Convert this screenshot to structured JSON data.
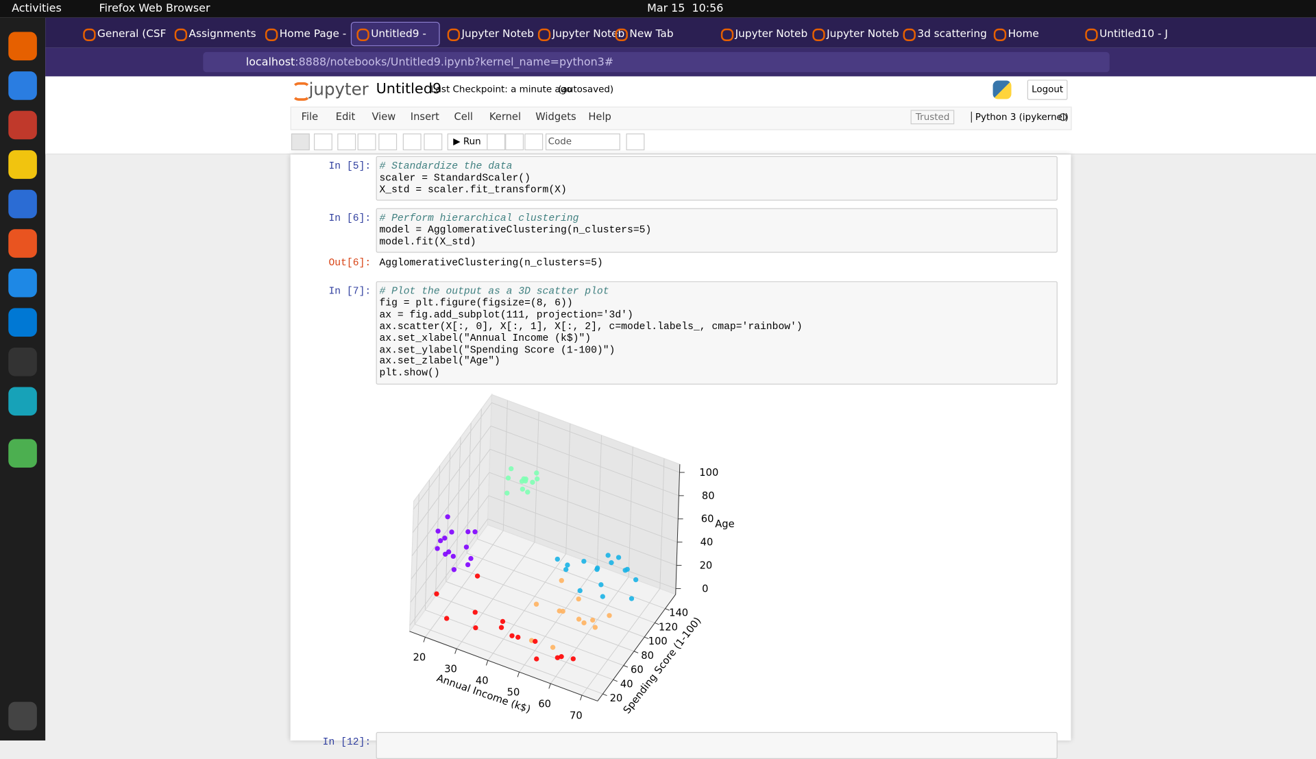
{
  "topbar": {
    "activities": "Activities",
    "app": "Firefox Web Browser",
    "clock": "Mar 15  10:56"
  },
  "tabs": [
    "General (CSF",
    "Assignments",
    "Home Page -",
    "Untitled9 -",
    "Jupyter Noteb",
    "Jupyter Noteb",
    "New Tab",
    "Jupyter Noteb",
    "Jupyter Noteb",
    "3d scattering",
    "Home",
    "Untitled10 - J"
  ],
  "url": {
    "host": "localhost",
    "path": ":8888/notebooks/Untitled9.ipynb?kernel_name=python3#"
  },
  "notebook": {
    "logo": "jupyter",
    "name": "Untitled9",
    "checkpoint": "Last Checkpoint: a minute ago",
    "autosaved": "(autosaved)",
    "logout": "Logout",
    "menu": [
      "File",
      "Edit",
      "View",
      "Insert",
      "Cell",
      "Kernel",
      "Widgets",
      "Help"
    ],
    "trusted": "Trusted",
    "kernel": "Python 3 (ipykernel)",
    "run": "Run",
    "cell_type": "Code"
  },
  "cells": [
    {
      "prompt": "In [5]:",
      "code": [
        "# Standardize the data",
        "scaler = StandardScaler()",
        "X_std = scaler.fit_transform(X)"
      ]
    },
    {
      "prompt": "In [6]:",
      "code": [
        "# Perform hierarchical clustering",
        "model = AgglomerativeClustering(n_clusters=5)",
        "model.fit(X_std)"
      ],
      "out_prompt": "Out[6]:",
      "output": "AgglomerativeClustering(n_clusters=5)"
    },
    {
      "prompt": "In [7]:",
      "code": [
        "# Plot the output as a 3D scatter plot",
        "fig = plt.figure(figsize=(8, 6))",
        "ax = fig.add_subplot(111, projection='3d')",
        "ax.scatter(X[:, 0], X[:, 1], X[:, 2], c=model.labels_, cmap='rainbow')",
        "ax.set_xlabel(\"Annual Income (k$)\")",
        "ax.set_ylabel(\"Spending Score (1-100)\")",
        "ax.set_zlabel(\"Age\")",
        "plt.show()"
      ]
    },
    {
      "prompt": "In [12]:"
    }
  ],
  "chart_data": {
    "type": "scatter3d",
    "xlabel": "Annual Income (k$)",
    "ylabel": "Spending Score (1-100)",
    "zlabel": "Age",
    "xlim": [
      15,
      75
    ],
    "ylim": [
      10,
      160
    ],
    "zlim": [
      -5,
      107
    ],
    "xticks": [
      20,
      30,
      40,
      50,
      60,
      70
    ],
    "yticks": [
      20,
      40,
      60,
      80,
      100,
      120,
      140
    ],
    "zticks": [
      0,
      20,
      40,
      60,
      80,
      100
    ],
    "series": [
      {
        "color": "#8000ff",
        "x": [
          19,
          21,
          23,
          18,
          25,
          22,
          20,
          26,
          24,
          17,
          27,
          23,
          21,
          28,
          19
        ],
        "y": [
          35,
          50,
          42,
          60,
          55,
          30,
          45,
          65,
          38,
          48,
          52,
          70,
          28,
          40,
          58
        ],
        "z": [
          55,
          62,
          48,
          66,
          50,
          70,
          45,
          58,
          40,
          60,
          44,
          52,
          68,
          47,
          38
        ]
      },
      {
        "color": "#80ffb4",
        "x": [
          31,
          34,
          36,
          33,
          38,
          32,
          35,
          37,
          30,
          39,
          34,
          36
        ],
        "y": [
          95,
          105,
          100,
          115,
          110,
          90,
          120,
          98,
          108,
          102,
          112,
          94
        ],
        "z": [
          78,
          85,
          92,
          80,
          88,
          95,
          76,
          83,
          90,
          99,
          81,
          87
        ]
      },
      {
        "color": "#1ab2e6",
        "x": [
          48,
          52,
          55,
          58,
          60,
          62,
          65,
          50,
          54,
          57,
          63,
          67,
          46,
          59,
          61,
          69
        ],
        "y": [
          110,
          120,
          95,
          130,
          105,
          140,
          125,
          100,
          135,
          115,
          90,
          130,
          105,
          145,
          118,
          110
        ],
        "z": [
          20,
          25,
          18,
          30,
          22,
          15,
          28,
          32,
          12,
          26,
          24,
          18,
          30,
          20,
          34,
          16
        ]
      },
      {
        "color": "#ffb360",
        "x": [
          50,
          55,
          60,
          64,
          68,
          53,
          58,
          62,
          66,
          57,
          70,
          52
        ],
        "y": [
          40,
          55,
          30,
          65,
          45,
          70,
          25,
          50,
          35,
          80,
          60,
          20
        ],
        "z": [
          35,
          25,
          45,
          20,
          30,
          40,
          15,
          28,
          38,
          22,
          33,
          18
        ]
      },
      {
        "color": "#ff0000",
        "x": [
          20,
          25,
          30,
          35,
          40,
          45,
          50,
          55,
          60,
          65,
          28,
          38,
          48,
          58
        ],
        "y": [
          30,
          20,
          45,
          15,
          35,
          25,
          40,
          12,
          30,
          22,
          60,
          50,
          18,
          35
        ],
        "z": [
          20,
          10,
          5,
          15,
          8,
          12,
          3,
          10,
          6,
          14,
          25,
          2,
          18,
          0
        ]
      }
    ]
  }
}
